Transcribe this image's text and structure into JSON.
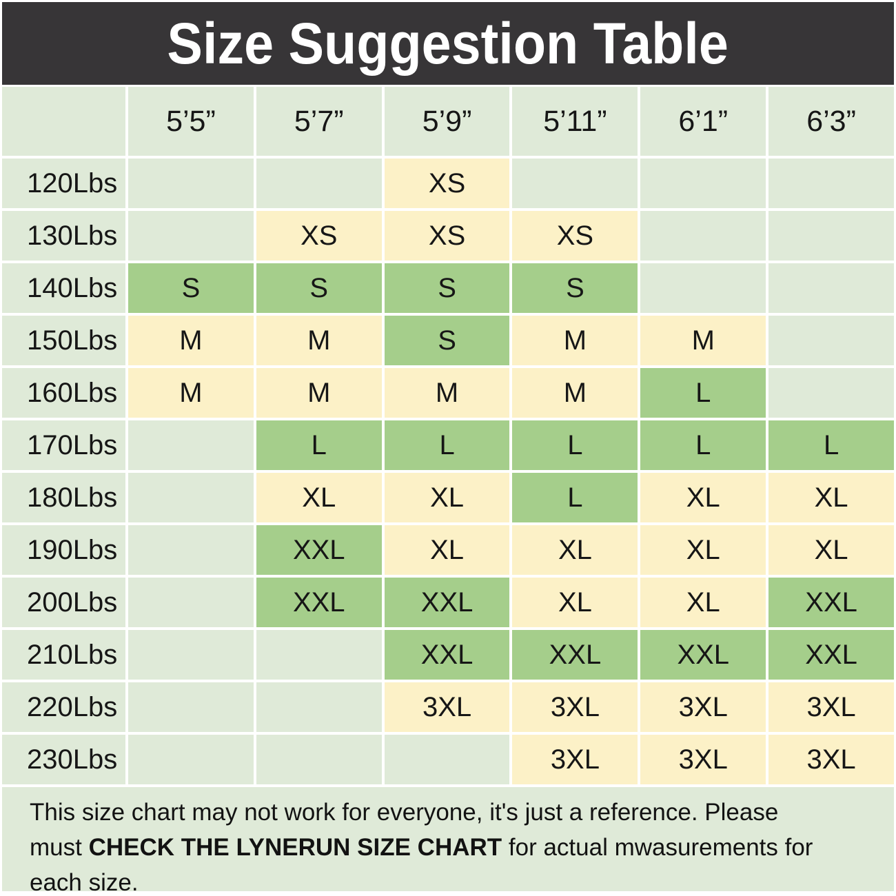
{
  "title": "Size Suggestion Table",
  "colors": {
    "title_bg": "#373537",
    "title_text": "#ffffff",
    "cell_default": "#dfead8",
    "cell_cream": "#fcf1c7",
    "cell_green": "#a5ce8b",
    "gridline": "#ffffff",
    "text": "#161616"
  },
  "table": {
    "columns": [
      "5’5”",
      "5’7”",
      "5’9”",
      "5’11”",
      "6’1”",
      "6’3”"
    ],
    "rows": [
      {
        "weight": "120Lbs",
        "cells": [
          {
            "size": "",
            "tone": "default"
          },
          {
            "size": "",
            "tone": "default"
          },
          {
            "size": "XS",
            "tone": "cream"
          },
          {
            "size": "",
            "tone": "default"
          },
          {
            "size": "",
            "tone": "default"
          },
          {
            "size": "",
            "tone": "default"
          }
        ]
      },
      {
        "weight": "130Lbs",
        "cells": [
          {
            "size": "",
            "tone": "default"
          },
          {
            "size": "XS",
            "tone": "cream"
          },
          {
            "size": "XS",
            "tone": "cream"
          },
          {
            "size": "XS",
            "tone": "cream"
          },
          {
            "size": "",
            "tone": "default"
          },
          {
            "size": "",
            "tone": "default"
          }
        ]
      },
      {
        "weight": "140Lbs",
        "cells": [
          {
            "size": "S",
            "tone": "green"
          },
          {
            "size": "S",
            "tone": "green"
          },
          {
            "size": "S",
            "tone": "green"
          },
          {
            "size": "S",
            "tone": "green"
          },
          {
            "size": "",
            "tone": "default"
          },
          {
            "size": "",
            "tone": "default"
          }
        ]
      },
      {
        "weight": "150Lbs",
        "cells": [
          {
            "size": "M",
            "tone": "cream"
          },
          {
            "size": "M",
            "tone": "cream"
          },
          {
            "size": "S",
            "tone": "green"
          },
          {
            "size": "M",
            "tone": "cream"
          },
          {
            "size": "M",
            "tone": "cream"
          },
          {
            "size": "",
            "tone": "default"
          }
        ]
      },
      {
        "weight": "160Lbs",
        "cells": [
          {
            "size": "M",
            "tone": "cream"
          },
          {
            "size": "M",
            "tone": "cream"
          },
          {
            "size": "M",
            "tone": "cream"
          },
          {
            "size": "M",
            "tone": "cream"
          },
          {
            "size": "L",
            "tone": "green"
          },
          {
            "size": "",
            "tone": "default"
          }
        ]
      },
      {
        "weight": "170Lbs",
        "cells": [
          {
            "size": "",
            "tone": "default"
          },
          {
            "size": "L",
            "tone": "green"
          },
          {
            "size": "L",
            "tone": "green"
          },
          {
            "size": "L",
            "tone": "green"
          },
          {
            "size": "L",
            "tone": "green"
          },
          {
            "size": "L",
            "tone": "green"
          }
        ]
      },
      {
        "weight": "180Lbs",
        "cells": [
          {
            "size": "",
            "tone": "default"
          },
          {
            "size": "XL",
            "tone": "cream"
          },
          {
            "size": "XL",
            "tone": "cream"
          },
          {
            "size": "L",
            "tone": "green"
          },
          {
            "size": "XL",
            "tone": "cream"
          },
          {
            "size": "XL",
            "tone": "cream"
          }
        ]
      },
      {
        "weight": "190Lbs",
        "cells": [
          {
            "size": "",
            "tone": "default"
          },
          {
            "size": "XXL",
            "tone": "green"
          },
          {
            "size": "XL",
            "tone": "cream"
          },
          {
            "size": "XL",
            "tone": "cream"
          },
          {
            "size": "XL",
            "tone": "cream"
          },
          {
            "size": "XL",
            "tone": "cream"
          }
        ]
      },
      {
        "weight": "200Lbs",
        "cells": [
          {
            "size": "",
            "tone": "default"
          },
          {
            "size": "XXL",
            "tone": "green"
          },
          {
            "size": "XXL",
            "tone": "green"
          },
          {
            "size": "XL",
            "tone": "cream"
          },
          {
            "size": "XL",
            "tone": "cream"
          },
          {
            "size": "XXL",
            "tone": "green"
          }
        ]
      },
      {
        "weight": "210Lbs",
        "cells": [
          {
            "size": "",
            "tone": "default"
          },
          {
            "size": "",
            "tone": "default"
          },
          {
            "size": "XXL",
            "tone": "green"
          },
          {
            "size": "XXL",
            "tone": "green"
          },
          {
            "size": "XXL",
            "tone": "green"
          },
          {
            "size": "XXL",
            "tone": "green"
          }
        ]
      },
      {
        "weight": "220Lbs",
        "cells": [
          {
            "size": "",
            "tone": "default"
          },
          {
            "size": "",
            "tone": "default"
          },
          {
            "size": "3XL",
            "tone": "cream"
          },
          {
            "size": "3XL",
            "tone": "cream"
          },
          {
            "size": "3XL",
            "tone": "cream"
          },
          {
            "size": "3XL",
            "tone": "cream"
          }
        ]
      },
      {
        "weight": "230Lbs",
        "cells": [
          {
            "size": "",
            "tone": "default"
          },
          {
            "size": "",
            "tone": "default"
          },
          {
            "size": "",
            "tone": "default"
          },
          {
            "size": "3XL",
            "tone": "cream"
          },
          {
            "size": "3XL",
            "tone": "cream"
          },
          {
            "size": "3XL",
            "tone": "cream"
          }
        ]
      }
    ]
  },
  "footer": {
    "line1": "This size chart may not work for everyone, it's just a reference. Please",
    "line2_pre": "must ",
    "line2_bold": "CHECK THE LYNERUN SIZE CHART",
    "line2_post": " for actual mwasurements for",
    "line3": "each size."
  },
  "chart_data": {
    "type": "table",
    "title": "Size Suggestion Table",
    "columns": [
      "5’5”",
      "5’7”",
      "5’9”",
      "5’11”",
      "6’1”",
      "6’3”"
    ],
    "row_labels": [
      "120Lbs",
      "130Lbs",
      "140Lbs",
      "150Lbs",
      "160Lbs",
      "170Lbs",
      "180Lbs",
      "190Lbs",
      "200Lbs",
      "210Lbs",
      "220Lbs",
      "230Lbs"
    ],
    "cells": [
      [
        "",
        "",
        "XS",
        "",
        "",
        ""
      ],
      [
        "",
        "XS",
        "XS",
        "XS",
        "",
        ""
      ],
      [
        "S",
        "S",
        "S",
        "S",
        "",
        ""
      ],
      [
        "M",
        "M",
        "S",
        "M",
        "M",
        ""
      ],
      [
        "M",
        "M",
        "M",
        "M",
        "L",
        ""
      ],
      [
        "",
        "L",
        "L",
        "L",
        "L",
        "L"
      ],
      [
        "",
        "XL",
        "XL",
        "L",
        "XL",
        "XL"
      ],
      [
        "",
        "XXL",
        "XL",
        "XL",
        "XL",
        "XL"
      ],
      [
        "",
        "XXL",
        "XXL",
        "XL",
        "XL",
        "XXL"
      ],
      [
        "",
        "",
        "XXL",
        "XXL",
        "XXL",
        "XXL"
      ],
      [
        "",
        "",
        "3XL",
        "3XL",
        "3XL",
        "3XL"
      ],
      [
        "",
        "",
        "",
        "3XL",
        "3XL",
        "3XL"
      ]
    ],
    "cell_highlight": [
      [
        "none",
        "none",
        "cream",
        "none",
        "none",
        "none"
      ],
      [
        "none",
        "cream",
        "cream",
        "cream",
        "none",
        "none"
      ],
      [
        "green",
        "green",
        "green",
        "green",
        "none",
        "none"
      ],
      [
        "cream",
        "cream",
        "green",
        "cream",
        "cream",
        "none"
      ],
      [
        "cream",
        "cream",
        "cream",
        "cream",
        "green",
        "none"
      ],
      [
        "none",
        "green",
        "green",
        "green",
        "green",
        "green"
      ],
      [
        "none",
        "cream",
        "cream",
        "green",
        "cream",
        "cream"
      ],
      [
        "none",
        "green",
        "cream",
        "cream",
        "cream",
        "cream"
      ],
      [
        "none",
        "green",
        "green",
        "cream",
        "cream",
        "green"
      ],
      [
        "none",
        "none",
        "green",
        "green",
        "green",
        "green"
      ],
      [
        "none",
        "none",
        "cream",
        "cream",
        "cream",
        "cream"
      ],
      [
        "none",
        "none",
        "none",
        "cream",
        "cream",
        "cream"
      ]
    ],
    "layout": {
      "grid": true,
      "gridline_color": "#ffffff",
      "legend": "none"
    }
  }
}
